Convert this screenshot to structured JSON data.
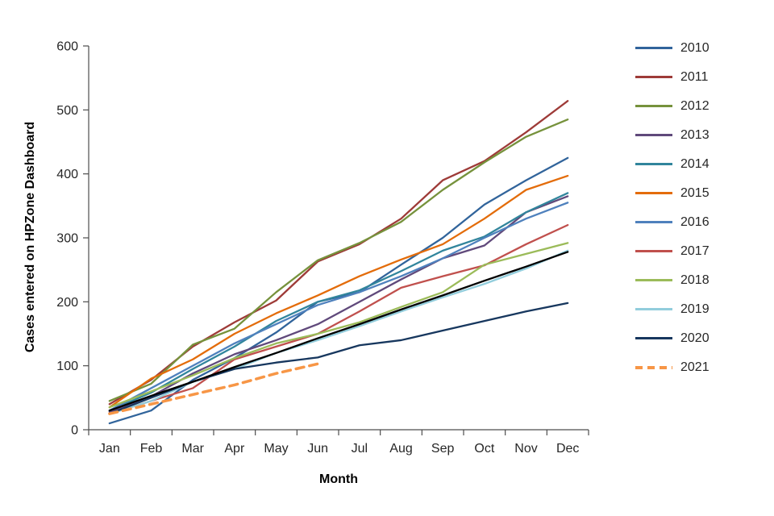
{
  "chart_data": {
    "type": "line",
    "title": "",
    "xlabel": "Month",
    "ylabel": "Cases entered on HPZone Dashboard",
    "categories": [
      "Jan",
      "Feb",
      "Mar",
      "Apr",
      "May",
      "Jun",
      "Jul",
      "Aug",
      "Sep",
      "Oct",
      "Nov",
      "Dec"
    ],
    "ylim": [
      0,
      600
    ],
    "yticks": [
      0,
      100,
      200,
      300,
      400,
      500,
      600
    ],
    "grid": false,
    "legend_position": "right",
    "axis_color": "#4d4d4d",
    "series": [
      {
        "name": "2010",
        "color": "#31649B",
        "dash": false,
        "in_legend": true,
        "values": [
          10,
          30,
          78,
          112,
          152,
          200,
          215,
          258,
          300,
          352,
          390,
          425
        ]
      },
      {
        "name": "2011",
        "color": "#9E3B38",
        "dash": false,
        "in_legend": true,
        "values": [
          40,
          78,
          130,
          168,
          202,
          263,
          290,
          330,
          390,
          420,
          465,
          514
        ]
      },
      {
        "name": "2012",
        "color": "#76923C",
        "dash": false,
        "in_legend": true,
        "values": [
          45,
          72,
          133,
          158,
          215,
          265,
          292,
          325,
          375,
          418,
          458,
          485
        ]
      },
      {
        "name": "2013",
        "color": "#60497B",
        "dash": false,
        "in_legend": true,
        "values": [
          28,
          52,
          88,
          118,
          140,
          165,
          200,
          235,
          268,
          288,
          340,
          365
        ]
      },
      {
        "name": "2014",
        "color": "#31859C",
        "dash": false,
        "in_legend": true,
        "values": [
          30,
          58,
          95,
          130,
          170,
          200,
          218,
          248,
          280,
          302,
          340,
          370
        ]
      },
      {
        "name": "2015",
        "color": "#E36C0A",
        "dash": false,
        "in_legend": true,
        "values": [
          35,
          80,
          110,
          150,
          182,
          210,
          240,
          266,
          290,
          330,
          375,
          397
        ]
      },
      {
        "name": "2016",
        "color": "#4F81BD",
        "dash": false,
        "in_legend": true,
        "values": [
          30,
          65,
          100,
          135,
          165,
          195,
          215,
          240,
          268,
          300,
          330,
          355
        ]
      },
      {
        "name": "2017",
        "color": "#C0504D",
        "dash": false,
        "in_legend": true,
        "values": [
          25,
          45,
          65,
          110,
          130,
          150,
          185,
          222,
          240,
          257,
          290,
          320
        ]
      },
      {
        "name": "2018",
        "color": "#9BBB59",
        "dash": false,
        "in_legend": true,
        "values": [
          35,
          60,
          85,
          112,
          135,
          150,
          168,
          192,
          215,
          258,
          275,
          292
        ]
      },
      {
        "name": "2019",
        "color": "#92CDDC",
        "dash": false,
        "in_legend": true,
        "values": [
          25,
          45,
          75,
          95,
          120,
          140,
          162,
          185,
          207,
          228,
          252,
          280
        ]
      },
      {
        "name": "2020",
        "color": "#17375E",
        "dash": false,
        "in_legend": true,
        "values": [
          25,
          50,
          75,
          95,
          105,
          113,
          132,
          140,
          155,
          170,
          185,
          198
        ]
      },
      {
        "name": "2021",
        "color": "#F79646",
        "dash": true,
        "width": 3.5,
        "in_legend": true,
        "values": [
          25,
          40,
          55,
          70,
          88,
          103
        ]
      },
      {
        "name": "trendline",
        "color": "#000000",
        "dash": false,
        "in_legend": false,
        "values": [
          30,
          53,
          75,
          98,
          120,
          143,
          165,
          188,
          210,
          233,
          255,
          278
        ]
      }
    ]
  }
}
